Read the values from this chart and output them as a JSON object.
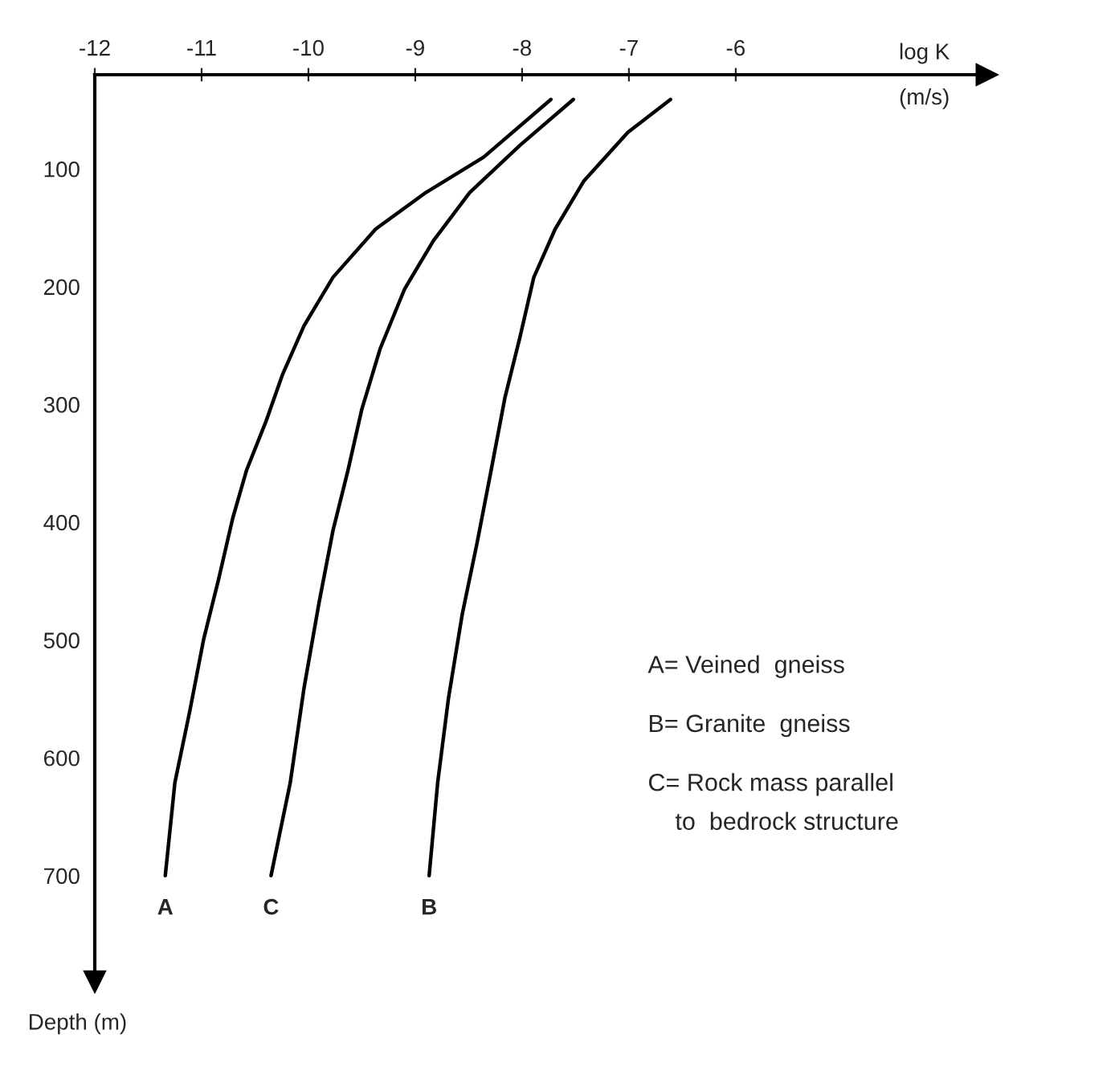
{
  "chart_data": {
    "type": "line",
    "xlabel": "log K\n(m/s)",
    "ylabel": "Depth (m)",
    "xlim": [
      -12,
      -3.65
    ],
    "ylim": [
      790,
      20
    ],
    "xticks": [
      -12,
      -11,
      -10,
      -9,
      -8,
      -7,
      -6
    ],
    "yticks": [
      100,
      200,
      300,
      400,
      500,
      600,
      700
    ],
    "grid": false,
    "legend": false,
    "marker": "none",
    "line_style": "solid",
    "series": [
      {
        "name": "A",
        "color": "#000000",
        "x": [
          -7.73,
          -8.36,
          -8.9,
          -9.37,
          -9.77,
          -10.04,
          -10.24,
          -10.4,
          -10.58,
          -10.71,
          -10.84,
          -10.98,
          -11.11,
          -11.25,
          -11.34
        ],
        "values": [
          41,
          90,
          120,
          151,
          192,
          233,
          274,
          315,
          356,
          397,
          448,
          499,
          560,
          621,
          700
        ]
      },
      {
        "name": "C",
        "color": "#000000",
        "x": [
          -7.52,
          -8.02,
          -8.49,
          -8.83,
          -9.1,
          -9.33,
          -9.5,
          -9.63,
          -9.77,
          -9.9,
          -10.04,
          -10.17,
          -10.35
        ],
        "values": [
          41,
          80,
          120,
          161,
          202,
          253,
          304,
          356,
          407,
          468,
          540,
          621,
          700
        ]
      },
      {
        "name": "B",
        "color": "#000000",
        "x": [
          -6.61,
          -7.01,
          -7.42,
          -7.69,
          -7.89,
          -8.02,
          -8.16,
          -8.29,
          -8.42,
          -8.56,
          -8.69,
          -8.79,
          -8.87
        ],
        "values": [
          41,
          69,
          110,
          151,
          192,
          243,
          294,
          356,
          417,
          478,
          550,
          621,
          700
        ]
      }
    ],
    "annotations": [
      "A= Veined  gneiss",
      "B= Granite  gneiss",
      "C= Rock mass parallel\n    to  bedrock structure"
    ]
  }
}
